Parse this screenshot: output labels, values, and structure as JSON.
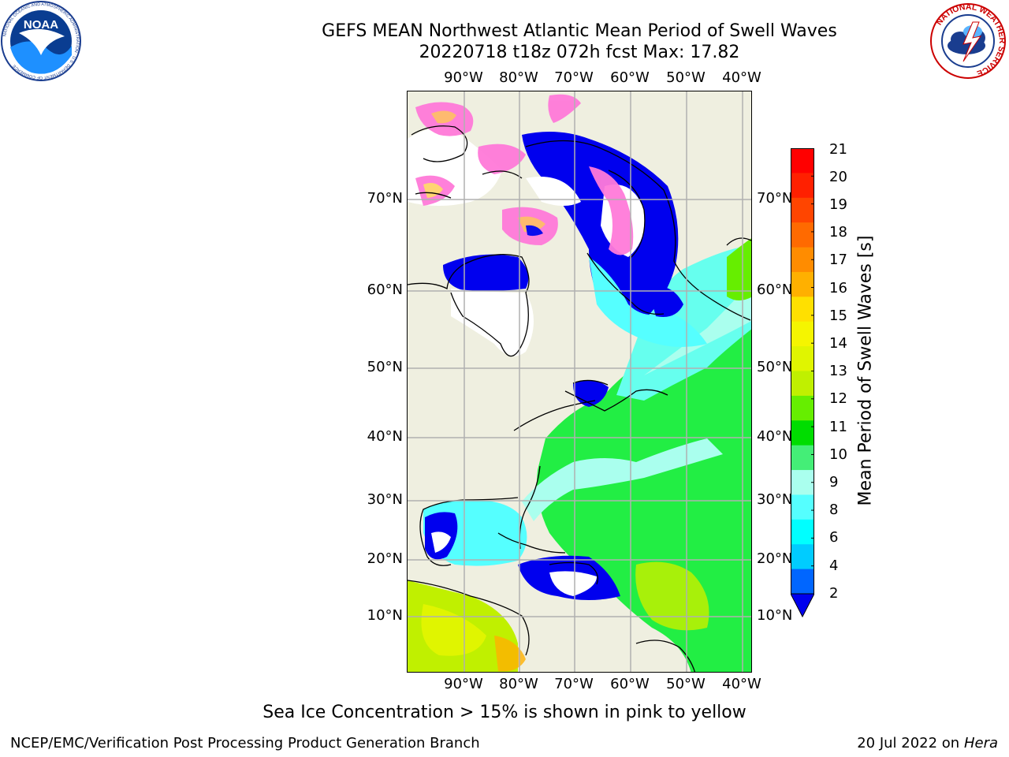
{
  "header": {
    "title_line1": "GEFS MEAN Northwest Atlantic Mean Period of Swell Waves",
    "title_line2": "20220718 t18z 072h fcst   Max: 17.82"
  },
  "logos": {
    "left": "noaa-logo",
    "left_ring_text": "NATIONAL OCEANIC AND ATMOSPHERIC ADMINISTRATION · U.S. DEPARTMENT OF COMMERCE",
    "left_center_text": "NOAA",
    "right": "nws-logo",
    "right_ring_text": "NATIONAL WEATHER SERVICE"
  },
  "map": {
    "lon_labels": [
      "90°W",
      "80°W",
      "70°W",
      "60°W",
      "50°W",
      "40°W"
    ],
    "lat_labels": [
      "70°N",
      "60°N",
      "50°N",
      "40°N",
      "30°N",
      "20°N",
      "10°N"
    ],
    "colors": {
      "land": "#efefe0",
      "no_data": "#ffffff",
      "coast": "#000000",
      "grid": "#b0b0b0"
    }
  },
  "colorbar": {
    "label": "Mean Period of Swell Waves [s]",
    "ticks": [
      "21",
      "20",
      "19",
      "18",
      "17",
      "16",
      "15",
      "14",
      "13",
      "12",
      "11",
      "10",
      "9",
      "8",
      "6",
      "4",
      "2"
    ],
    "colors": [
      "#ff0000",
      "#ff2000",
      "#ff4500",
      "#ff6a00",
      "#ff8c00",
      "#ffb000",
      "#ffe000",
      "#f5f500",
      "#e0f500",
      "#c0f000",
      "#66ee00",
      "#00dd00",
      "#44ee77",
      "#aaffee",
      "#55ffff",
      "#00ffff",
      "#00ccff",
      "#0066ff"
    ],
    "extend_color": "#0000ee"
  },
  "footer": {
    "note": "Sea Ice Concentration > 15% is shown in pink to yellow",
    "left": "NCEP/EMC/Verification Post Processing Product Generation Branch",
    "right_date": "20 Jul 2022 on ",
    "right_host": "Hera"
  }
}
